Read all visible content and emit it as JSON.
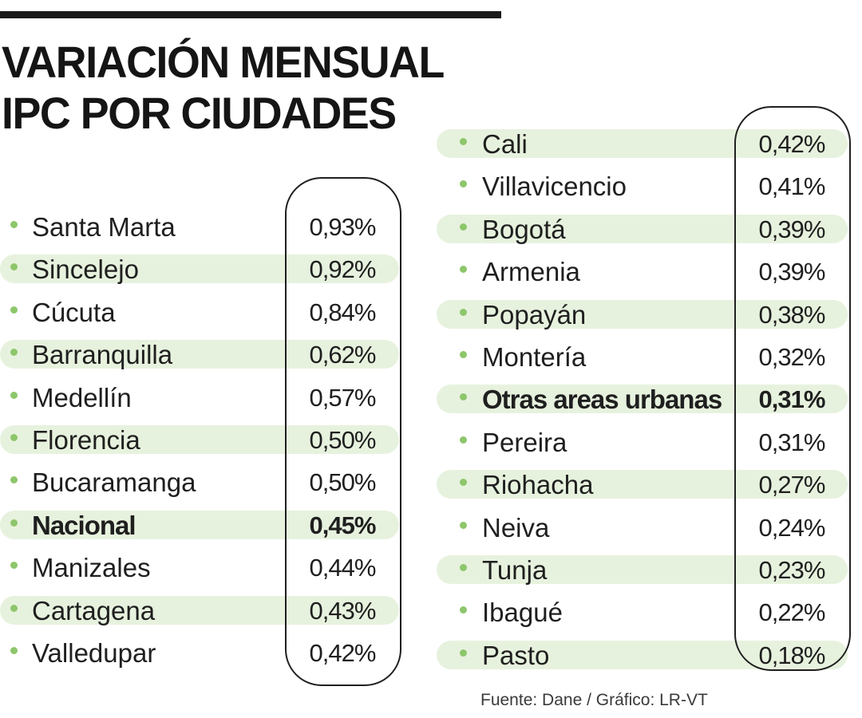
{
  "chart_data": {
    "type": "table",
    "title_lines": [
      "VARIACIÓN MENSUAL",
      "IPC POR CIUDADES"
    ],
    "source": "Fuente: Dane / Gráfico: LR-VT",
    "columns": [
      {
        "rows": [
          {
            "city": "Santa Marta",
            "value": "0,93%",
            "highlight": false,
            "bold": false
          },
          {
            "city": "Sincelejo",
            "value": "0,92%",
            "highlight": true,
            "bold": false
          },
          {
            "city": "Cúcuta",
            "value": "0,84%",
            "highlight": false,
            "bold": false
          },
          {
            "city": "Barranquilla",
            "value": "0,62%",
            "highlight": true,
            "bold": false
          },
          {
            "city": "Medellín",
            "value": "0,57%",
            "highlight": false,
            "bold": false
          },
          {
            "city": "Florencia",
            "value": "0,50%",
            "highlight": true,
            "bold": false
          },
          {
            "city": "Bucaramanga",
            "value": "0,50%",
            "highlight": false,
            "bold": false
          },
          {
            "city": "Nacional",
            "value": "0,45%",
            "highlight": true,
            "bold": true
          },
          {
            "city": "Manizales",
            "value": "0,44%",
            "highlight": false,
            "bold": false
          },
          {
            "city": "Cartagena",
            "value": "0,43%",
            "highlight": true,
            "bold": false
          },
          {
            "city": "Valledupar",
            "value": "0,42%",
            "highlight": false,
            "bold": false
          }
        ]
      },
      {
        "rows": [
          {
            "city": "Cali",
            "value": "0,42%",
            "highlight": true,
            "bold": false
          },
          {
            "city": "Villavicencio",
            "value": "0,41%",
            "highlight": false,
            "bold": false
          },
          {
            "city": "Bogotá",
            "value": "0,39%",
            "highlight": true,
            "bold": false
          },
          {
            "city": "Armenia",
            "value": "0,39%",
            "highlight": false,
            "bold": false
          },
          {
            "city": "Popayán",
            "value": "0,38%",
            "highlight": true,
            "bold": false
          },
          {
            "city": "Montería",
            "value": "0,32%",
            "highlight": false,
            "bold": false
          },
          {
            "city": "Otras areas urbanas",
            "value": "0,31%",
            "highlight": true,
            "bold": true
          },
          {
            "city": "Pereira",
            "value": "0,31%",
            "highlight": false,
            "bold": false
          },
          {
            "city": "Riohacha",
            "value": "0,27%",
            "highlight": true,
            "bold": false
          },
          {
            "city": "Neiva",
            "value": "0,24%",
            "highlight": false,
            "bold": false
          },
          {
            "city": "Tunja",
            "value": "0,23%",
            "highlight": true,
            "bold": false
          },
          {
            "city": "Ibagué",
            "value": "0,22%",
            "highlight": false,
            "bold": false
          },
          {
            "city": "Pasto",
            "value": "0,18%",
            "highlight": true,
            "bold": false
          }
        ]
      }
    ]
  },
  "colors": {
    "band": "#e7f2de",
    "bullet": "#8dc66b",
    "text": "#1f1f1f",
    "rule": "#1a1a1a"
  }
}
